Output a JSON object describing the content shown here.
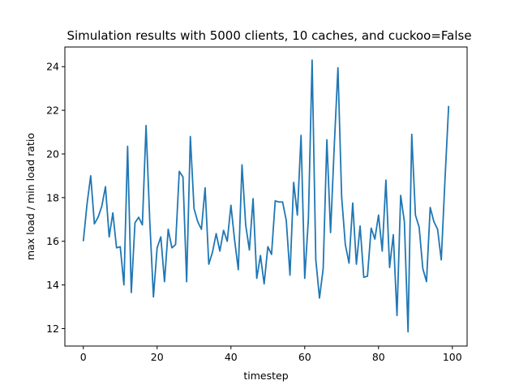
{
  "chart_data": {
    "type": "line",
    "title": "Simulation results with 5000 clients, 10 caches, and cuckoo=False",
    "xlabel": "timestep",
    "ylabel": "max load / min load ratio",
    "xlim": [
      -5,
      104
    ],
    "ylim": [
      11.2,
      24.9
    ],
    "xticks": [
      0,
      20,
      40,
      60,
      80,
      100
    ],
    "yticks": [
      12,
      14,
      16,
      18,
      20,
      22,
      24
    ],
    "xtick_labels": [
      "0",
      "20",
      "40",
      "60",
      "80",
      "100"
    ],
    "ytick_labels": [
      "12",
      "14",
      "16",
      "18",
      "20",
      "22",
      "24"
    ],
    "grid": false,
    "series": [
      {
        "color": "#1f77b4",
        "x": [
          0,
          1,
          2,
          3,
          4,
          5,
          6,
          7,
          8,
          9,
          10,
          11,
          12,
          13,
          14,
          15,
          16,
          17,
          18,
          19,
          20,
          21,
          22,
          23,
          24,
          25,
          26,
          27,
          28,
          29,
          30,
          31,
          32,
          33,
          34,
          35,
          36,
          37,
          38,
          39,
          40,
          41,
          42,
          43,
          44,
          45,
          46,
          47,
          48,
          49,
          50,
          51,
          52,
          53,
          54,
          55,
          56,
          57,
          58,
          59,
          60,
          61,
          62,
          63,
          64,
          65,
          66,
          67,
          68,
          69,
          70,
          71,
          72,
          73,
          74,
          75,
          76,
          77,
          78,
          79,
          80,
          81,
          82,
          83,
          84,
          85,
          86,
          87,
          88,
          89,
          90,
          91,
          92,
          93,
          94,
          95,
          96,
          97,
          98,
          99
        ],
        "y": [
          16.0,
          17.7,
          19.0,
          16.8,
          17.1,
          17.6,
          18.5,
          16.2,
          17.3,
          15.7,
          15.75,
          14.0,
          20.35,
          13.65,
          16.85,
          17.1,
          16.75,
          21.3,
          16.95,
          13.45,
          15.7,
          16.2,
          14.15,
          16.55,
          15.7,
          15.85,
          19.2,
          18.95,
          14.15,
          20.8,
          17.5,
          16.9,
          16.55,
          18.45,
          14.95,
          15.5,
          16.35,
          15.55,
          16.5,
          16.0,
          17.65,
          16.05,
          14.7,
          19.5,
          16.75,
          15.6,
          17.95,
          14.3,
          15.35,
          14.05,
          15.75,
          15.4,
          17.85,
          17.8,
          17.8,
          16.95,
          14.45,
          18.7,
          17.2,
          20.85,
          14.3,
          17.05,
          24.3,
          15.15,
          13.4,
          14.75,
          20.65,
          16.4,
          20.35,
          23.95,
          18.05,
          15.85,
          15.0,
          17.75,
          14.95,
          16.7,
          14.35,
          14.4,
          16.6,
          16.1,
          17.2,
          15.55,
          18.8,
          14.8,
          16.3,
          12.6,
          18.1,
          16.9,
          11.85,
          20.9,
          17.2,
          16.65,
          14.75,
          14.15,
          17.55,
          16.9,
          16.55,
          15.15,
          18.8,
          22.2
        ]
      }
    ]
  }
}
